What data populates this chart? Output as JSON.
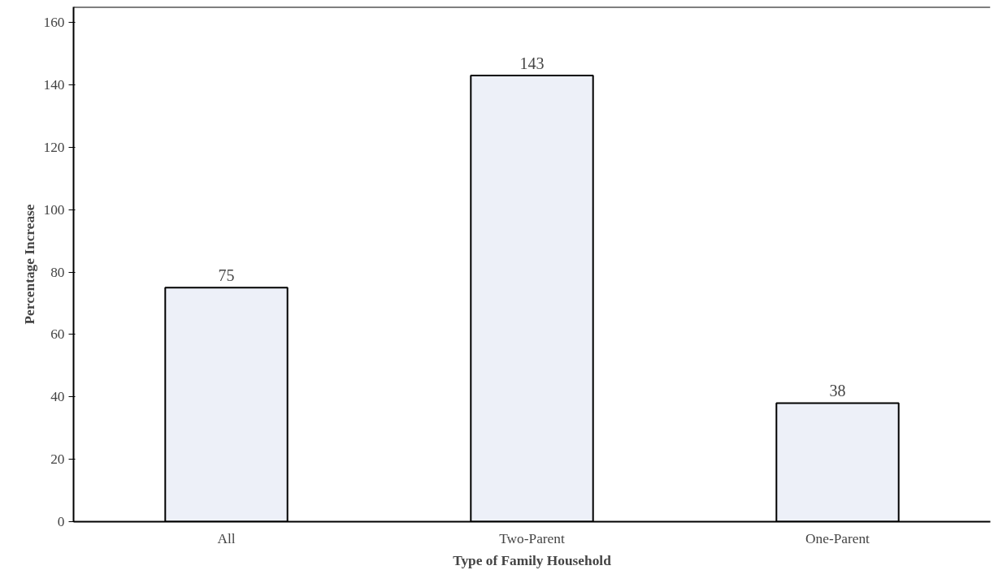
{
  "chart_data": {
    "type": "bar",
    "xlabel": "Type of Family Household",
    "ylabel": "Percentage Increase",
    "categories": [
      "All",
      "Two-Parent",
      "One-Parent"
    ],
    "values": [
      75,
      143,
      38
    ],
    "color": "#edf0f8",
    "ylim": [
      0,
      165
    ],
    "yticks": [
      0,
      20,
      40,
      60,
      80,
      100,
      120,
      140,
      160
    ],
    "grid": false,
    "data_labels": true
  }
}
